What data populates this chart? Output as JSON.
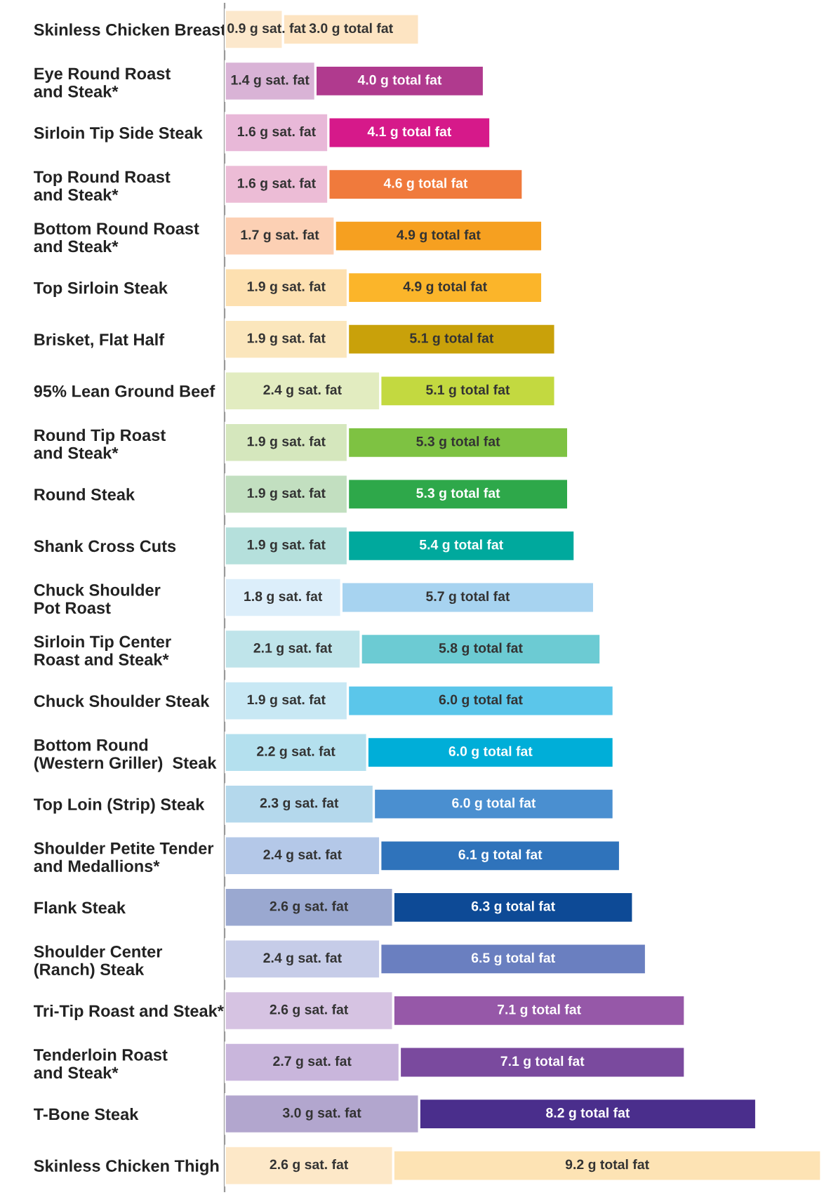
{
  "chart_data": {
    "type": "bar",
    "orientation": "horizontal",
    "stacked": false,
    "grid": false,
    "legend": false,
    "categories": [
      "Skinless Chicken Breast",
      "Eye Round Roast\nand Steak*",
      "Sirloin Tip Side Steak",
      "Top Round Roast\nand Steak*",
      "Bottom Round Roast\nand Steak*",
      "Top Sirloin Steak",
      "Brisket, Flat Half",
      "95% Lean Ground Beef",
      "Round Tip Roast\nand Steak*",
      "Round Steak",
      "Shank Cross Cuts",
      "Chuck Shoulder\nPot Roast",
      "Sirloin Tip Center\nRoast and Steak*",
      "Chuck Shoulder Steak",
      "Bottom Round\n(Western Griller)  Steak",
      "Top Loin (Strip) Steak",
      "Shoulder Petite Tender\nand Medallions*",
      "Flank Steak",
      "Shoulder Center\n(Ranch) Steak",
      "Tri-Tip Roast and Steak*",
      "Tenderloin Roast\nand Steak*",
      "T-Bone Steak",
      "Skinless Chicken Thigh"
    ],
    "series": [
      {
        "values": [
          3.0,
          4.0,
          4.1,
          4.6,
          4.9,
          4.9,
          5.1,
          5.1,
          5.3,
          5.3,
          5.4,
          5.7,
          5.8,
          6.0,
          6.0,
          6.0,
          6.1,
          6.3,
          6.5,
          7.1,
          7.1,
          8.2,
          9.2
        ],
        "value_labels": [
          "3.0 g total fat",
          "4.0 g total fat",
          "4.1 g total fat",
          "4.6 g total fat",
          "4.9 g total fat",
          "4.9 g total fat",
          "5.1 g total fat",
          "5.1 g total fat",
          "5.3 g total fat",
          "5.3 g total fat",
          "5.4 g total fat",
          "5.7 g total fat",
          "5.8 g total fat",
          "6.0 g total fat",
          "6.0 g total fat",
          "6.0 g total fat",
          "6.1 g total fat",
          "6.3 g total fat",
          "6.5 g total fat",
          "7.1 g total fat",
          "7.1 g total fat",
          "8.2 g total fat",
          "9.2 g total fat"
        ],
        "colors": [
          "#fde4c2",
          "#b03a8e",
          "#d6198a",
          "#f07a3c",
          "#f6a020",
          "#fbb52a",
          "#c9a10a",
          "#c3d940",
          "#7ec242",
          "#2ea84a",
          "#00a99d",
          "#a7d3f0",
          "#6ccbd3",
          "#5bc6ea",
          "#00aed8",
          "#4a8fd0",
          "#2f73bb",
          "#0d4a96",
          "#6a7fc0",
          "#9658a8",
          "#7a4a9e",
          "#4a2e8c",
          "#fde3b4"
        ]
      },
      {
        "values": [
          0.9,
          1.4,
          1.6,
          1.6,
          1.7,
          1.9,
          1.9,
          2.4,
          1.9,
          1.9,
          1.9,
          1.8,
          2.1,
          1.9,
          2.2,
          2.3,
          2.4,
          2.6,
          2.4,
          2.6,
          2.7,
          3.0,
          2.6
        ],
        "value_labels": [
          "0.9 g sat. fat",
          "1.4 g sat. fat",
          "1.6 g sat. fat",
          "1.6 g sat. fat",
          "1.7 g sat. fat",
          "1.9 g sat. fat",
          "1.9 g sat. fat",
          "2.4 g sat. fat",
          "1.9 g sat. fat",
          "1.9 g sat. fat",
          "1.9 g sat. fat",
          "1.8 g sat. fat",
          "2.1 g sat. fat",
          "1.9 g sat. fat",
          "2.2 g sat. fat",
          "2.3 g sat. fat",
          "2.4 g sat. fat",
          "2.6 g sat. fat",
          "2.4 g sat. fat",
          "2.6 g sat. fat",
          "2.7 g sat. fat",
          "3.0 g sat. fat",
          "2.6 g sat. fat"
        ],
        "colors": [
          "#fce8cc",
          "#d9b3d6",
          "#e8b8d8",
          "#ecbcd6",
          "#fcd0b4",
          "#fde0b0",
          "#fbe6bc",
          "#e2ecc0",
          "#d5e7bd",
          "#c2dfc0",
          "#b5e0dc",
          "#dceefa",
          "#bfe4ea",
          "#c8e8f4",
          "#b4e0ee",
          "#b4d8ec",
          "#b4c8e8",
          "#9aa8d0",
          "#c6cce8",
          "#d6c3e2",
          "#c9b6dc",
          "#b2a6ce",
          "#fde8c8"
        ]
      }
    ]
  }
}
